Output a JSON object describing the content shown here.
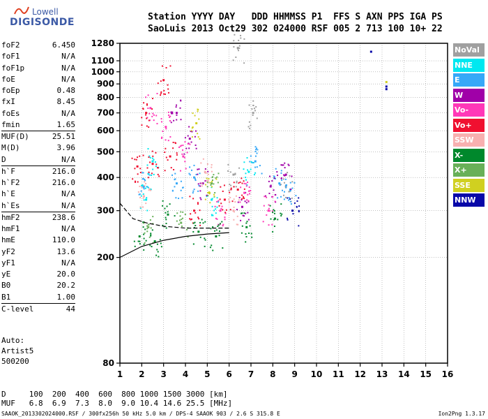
{
  "logo": {
    "line1": "Lowell",
    "line2": "DIGISONDE"
  },
  "header": {
    "line1": "Station YYYY DAY   DDD HHMMSS P1  FFS S AXN PPS IGA PS",
    "line2": "SaoLuis 2013 Oct29 302 024000 RSF 005 2 713 100 10+ 22"
  },
  "params": [
    {
      "label": "foF2",
      "value": "6.450"
    },
    {
      "label": "foF1",
      "value": "N/A"
    },
    {
      "label": "foF1p",
      "value": "N/A"
    },
    {
      "label": "foE",
      "value": "N/A"
    },
    {
      "label": "foEp",
      "value": "0.48"
    },
    {
      "label": "fxI",
      "value": "8.45"
    },
    {
      "label": "foEs",
      "value": "N/A"
    },
    {
      "label": "fmin",
      "value": "1.65"
    },
    {
      "label": "MUF(D)",
      "value": "25.51",
      "sep": true
    },
    {
      "label": "M(D)",
      "value": "3.96"
    },
    {
      "label": "D",
      "value": "N/A"
    },
    {
      "label": "h`F",
      "value": "216.0",
      "sep": true
    },
    {
      "label": "h`F2",
      "value": "216.0"
    },
    {
      "label": "h`E",
      "value": "N/A"
    },
    {
      "label": "h`Es",
      "value": "N/A"
    },
    {
      "label": "hmF2",
      "value": "238.6",
      "sep": true
    },
    {
      "label": "hmF1",
      "value": "N/A"
    },
    {
      "label": "hmE",
      "value": "110.0"
    },
    {
      "label": "yF2",
      "value": "13.6"
    },
    {
      "label": "yF1",
      "value": "N/A"
    },
    {
      "label": "yE",
      "value": "20.0"
    },
    {
      "label": "B0",
      "value": "20.2"
    },
    {
      "label": "B1",
      "value": "1.00"
    },
    {
      "label": "C-level",
      "value": "44",
      "sep": true
    }
  ],
  "auto": {
    "line1": "Auto:",
    "line2": "Artist5",
    "line3": "500200"
  },
  "legend": [
    {
      "label": "NoVal",
      "color": "#a0a0a0"
    },
    {
      "label": "NNE",
      "color": "#00e8f0"
    },
    {
      "label": "E",
      "color": "#36a8f8"
    },
    {
      "label": "W",
      "color": "#a000a8"
    },
    {
      "label": "Vo-",
      "color": "#ff38b8"
    },
    {
      "label": "Vo+",
      "color": "#f01030"
    },
    {
      "label": "SSW",
      "color": "#f8b0b0"
    },
    {
      "label": "X-",
      "color": "#00882c"
    },
    {
      "label": "X+",
      "color": "#68b058"
    },
    {
      "label": "SSE",
      "color": "#d0d020"
    },
    {
      "label": "NNW",
      "color": "#0808a8"
    }
  ],
  "conversion": {
    "line1": "D     100  200  400  600  800 1000 1500 3000 [km]",
    "line2": "MUF   6.8  6.9  7.3  8.0  9.0 10.4 14.6 25.5 [MHz]"
  },
  "footer": {
    "line": "SAAOK_2013302024000.RSF / 300fx256h 50 kHz 5.0 km / DPS-4 SAAOK 903 / 2.6 S 315.8 E",
    "version": "Ion2Png 1.3.17"
  },
  "chart_data": {
    "type": "scatter",
    "title": "",
    "xlabel": "",
    "ylabel": "",
    "xlim": [
      1,
      16
    ],
    "ylim": [
      80,
      1280
    ],
    "y_scale": "log",
    "x_ticks": [
      1,
      2,
      3,
      4,
      5,
      6,
      7,
      8,
      9,
      10,
      11,
      12,
      13,
      14,
      15,
      16
    ],
    "y_ticks": [
      80,
      200,
      300,
      400,
      500,
      600,
      700,
      800,
      900,
      1000,
      1100,
      1280
    ],
    "grid": true,
    "legend_position": "right",
    "series": [
      {
        "name": "NoVal",
        "points": [
          [
            6.4,
            1230
          ],
          [
            7.1,
            700
          ],
          [
            8.6,
            370
          ],
          [
            6.2,
            410
          ]
        ]
      },
      {
        "name": "NNE",
        "points": [
          [
            2.2,
            330
          ],
          [
            2.5,
            460
          ],
          [
            5.2,
            330
          ],
          [
            6.9,
            420
          ]
        ]
      },
      {
        "name": "E",
        "points": [
          [
            2.1,
            370
          ],
          [
            3.6,
            380
          ],
          [
            4.4,
            400
          ],
          [
            7.2,
            460
          ],
          [
            8.3,
            380
          ],
          [
            8.8,
            360
          ]
        ]
      },
      {
        "name": "W",
        "points": [
          [
            3.6,
            700
          ],
          [
            4.2,
            560
          ],
          [
            4.8,
            380
          ],
          [
            6.6,
            310
          ],
          [
            7.9,
            370
          ],
          [
            8.6,
            410
          ]
        ]
      },
      {
        "name": "Vo-",
        "points": [
          [
            2.4,
            730
          ],
          [
            3.1,
            620
          ],
          [
            3.9,
            480
          ],
          [
            5.6,
            300
          ],
          [
            6.7,
            350
          ],
          [
            7.8,
            300
          ]
        ]
      },
      {
        "name": "Vo+",
        "points": [
          [
            1.8,
            440
          ],
          [
            2.2,
            700
          ],
          [
            2.5,
            450
          ],
          [
            3.0,
            930
          ],
          [
            3.3,
            480
          ],
          [
            4.4,
            300
          ],
          [
            5.8,
            330
          ],
          [
            6.4,
            360
          ]
        ]
      },
      {
        "name": "SSW",
        "points": [
          [
            2.1,
            340
          ],
          [
            4.9,
            420
          ],
          [
            6.2,
            300
          ]
        ]
      },
      {
        "name": "X-",
        "points": [
          [
            1.9,
            240
          ],
          [
            2.6,
            230
          ],
          [
            3.2,
            290
          ],
          [
            4.6,
            250
          ],
          [
            5.4,
            240
          ],
          [
            6.8,
            260
          ],
          [
            8.1,
            280
          ]
        ]
      },
      {
        "name": "X+",
        "points": [
          [
            2.3,
            260
          ],
          [
            3.8,
            270
          ],
          [
            5.2,
            380
          ]
        ]
      },
      {
        "name": "SSE",
        "points": [
          [
            4.5,
            640
          ],
          [
            13.2,
            915
          ],
          [
            5.1,
            350
          ]
        ]
      },
      {
        "name": "NNW",
        "points": [
          [
            12.5,
            1190
          ],
          [
            13.2,
            880
          ],
          [
            13.2,
            860
          ],
          [
            8.9,
            300
          ]
        ]
      }
    ],
    "curves": [
      {
        "name": "upper",
        "points": [
          [
            1.0,
            320
          ],
          [
            1.6,
            280
          ],
          [
            2.2,
            270
          ],
          [
            3.0,
            262
          ],
          [
            4.0,
            258
          ],
          [
            5.0,
            258
          ],
          [
            6.0,
            258
          ]
        ]
      },
      {
        "name": "lower",
        "points": [
          [
            1.0,
            200
          ],
          [
            2.0,
            220
          ],
          [
            3.0,
            232
          ],
          [
            4.0,
            240
          ],
          [
            5.0,
            245
          ],
          [
            6.0,
            248
          ]
        ]
      }
    ]
  }
}
